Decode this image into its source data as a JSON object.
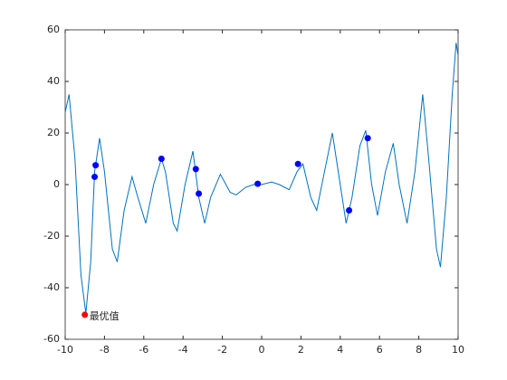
{
  "chart_data": {
    "type": "line",
    "xlim": [
      -10,
      10
    ],
    "xticks": [
      -10,
      -8,
      -6,
      -4,
      -2,
      0,
      2,
      4,
      6,
      8,
      10
    ],
    "ylim": [
      -60,
      60
    ],
    "yticks": [
      -60,
      -40,
      -20,
      0,
      20,
      40,
      60
    ],
    "curve": {
      "color": "#0072bd",
      "x": [
        -10,
        -9.8,
        -9.5,
        -9.2,
        -8.95,
        -8.7,
        -8.5,
        -8.25,
        -8.0,
        -7.6,
        -7.35,
        -7.0,
        -6.6,
        -6.3,
        -5.9,
        -5.5,
        -5.1,
        -4.9,
        -4.5,
        -4.3,
        -3.9,
        -3.5,
        -3.2,
        -2.9,
        -2.6,
        -2.1,
        -1.6,
        -1.3,
        -0.8,
        -0.4,
        0,
        0.5,
        0.9,
        1.4,
        1.8,
        2.1,
        2.5,
        2.8,
        3.2,
        3.6,
        4.0,
        4.3,
        4.6,
        5.0,
        5.3,
        5.6,
        5.9,
        6.3,
        6.7,
        7.0,
        7.4,
        7.8,
        8.2,
        8.5,
        8.9,
        9.1,
        9.4,
        9.7,
        9.9,
        10
      ],
      "y": [
        28,
        35,
        10,
        -35,
        -50,
        -30,
        5,
        18,
        5,
        -25,
        -30,
        -10,
        3,
        -5,
        -15,
        0,
        10,
        5,
        -15,
        -18,
        0,
        13,
        -5,
        -15,
        -5,
        4,
        -3,
        -4,
        -1,
        0,
        0,
        1,
        0,
        -2,
        5,
        8,
        -5,
        -10,
        5,
        20,
        0,
        -15,
        -5,
        15,
        21,
        0,
        -12,
        5,
        16,
        0,
        -15,
        5,
        35,
        10,
        -25,
        -32,
        -5,
        35,
        55,
        50
      ]
    },
    "points": {
      "color": "#0000ff",
      "x": [
        -8.45,
        -8.5,
        -5.1,
        -3.35,
        -3.2,
        -0.2,
        1.85,
        4.45,
        5.4
      ],
      "y": [
        7.5,
        3,
        10,
        6,
        -3.5,
        0.3,
        8,
        -10,
        18
      ]
    },
    "best": {
      "color": "#ff0000",
      "x": -9,
      "y": -50.5,
      "label": "最优值"
    }
  }
}
